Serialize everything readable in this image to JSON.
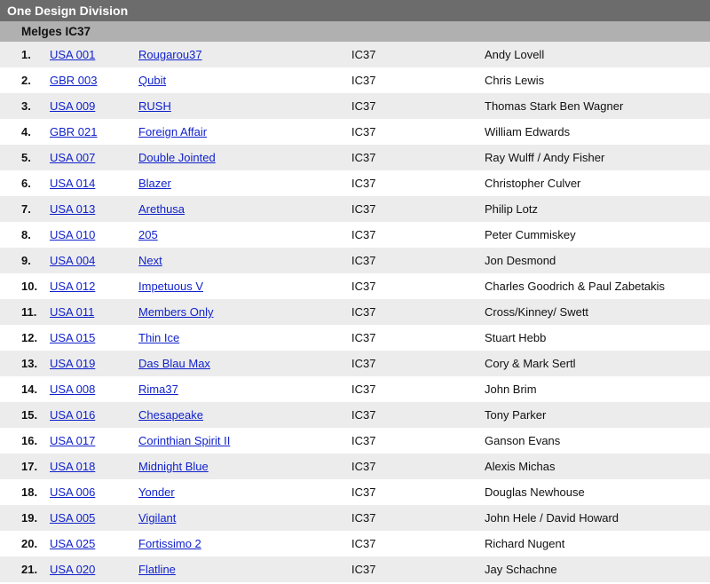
{
  "division_title": "One Design Division",
  "class_title": "Melges IC37",
  "colors": {
    "division_bg": "#6c6c6c",
    "division_fg": "#ffffff",
    "class_bg": "#b0b0b0",
    "class_fg": "#111111",
    "row_odd_bg": "#ececec",
    "row_even_bg": "#ffffff",
    "link_color": "#1122cc",
    "text_color": "#111111"
  },
  "columns": [
    "rank",
    "sail",
    "boat",
    "class",
    "owner"
  ],
  "rows": [
    {
      "rank": "1.",
      "sail": "USA 001",
      "boat": "Rougarou37",
      "class": "IC37",
      "owner": "Andy Lovell"
    },
    {
      "rank": "2.",
      "sail": "GBR 003",
      "boat": "Qubit",
      "class": "IC37",
      "owner": "Chris Lewis"
    },
    {
      "rank": "3.",
      "sail": "USA 009",
      "boat": "RUSH",
      "class": "IC37",
      "owner": "Thomas Stark Ben Wagner"
    },
    {
      "rank": "4.",
      "sail": "GBR 021",
      "boat": "Foreign Affair",
      "class": "IC37",
      "owner": "William Edwards"
    },
    {
      "rank": "5.",
      "sail": "USA 007",
      "boat": "Double Jointed",
      "class": "IC37",
      "owner": "Ray Wulff / Andy Fisher"
    },
    {
      "rank": "6.",
      "sail": "USA 014",
      "boat": "Blazer",
      "class": "IC37",
      "owner": "Christopher Culver"
    },
    {
      "rank": "7.",
      "sail": "USA 013",
      "boat": "Arethusa",
      "class": "IC37",
      "owner": "Philip Lotz"
    },
    {
      "rank": "8.",
      "sail": "USA 010",
      "boat": "205",
      "class": "IC37",
      "owner": "Peter Cummiskey"
    },
    {
      "rank": "9.",
      "sail": "USA 004",
      "boat": "Next",
      "class": "IC37",
      "owner": "Jon Desmond"
    },
    {
      "rank": "10.",
      "sail": "USA 012",
      "boat": "Impetuous V",
      "class": "IC37",
      "owner": "Charles Goodrich & Paul Zabetakis"
    },
    {
      "rank": "11.",
      "sail": "USA 011",
      "boat": "Members Only",
      "class": "IC37",
      "owner": "Cross/Kinney/ Swett"
    },
    {
      "rank": "12.",
      "sail": "USA 015",
      "boat": "Thin Ice",
      "class": "IC37",
      "owner": "Stuart Hebb"
    },
    {
      "rank": "13.",
      "sail": "USA 019",
      "boat": "Das Blau Max",
      "class": "IC37",
      "owner": "Cory & Mark Sertl"
    },
    {
      "rank": "14.",
      "sail": "USA 008",
      "boat": "Rima37",
      "class": "IC37",
      "owner": "John Brim"
    },
    {
      "rank": "15.",
      "sail": "USA 016",
      "boat": "Chesapeake",
      "class": "IC37",
      "owner": "Tony Parker"
    },
    {
      "rank": "16.",
      "sail": "USA 017",
      "boat": "Corinthian Spirit II",
      "class": "IC37",
      "owner": "Ganson Evans"
    },
    {
      "rank": "17.",
      "sail": "USA 018",
      "boat": "Midnight Blue",
      "class": "IC37",
      "owner": "Alexis Michas"
    },
    {
      "rank": "18.",
      "sail": "USA 006",
      "boat": "Yonder",
      "class": "IC37",
      "owner": "Douglas Newhouse"
    },
    {
      "rank": "19.",
      "sail": "USA 005",
      "boat": "Vigilant",
      "class": "IC37",
      "owner": "John Hele / David Howard"
    },
    {
      "rank": "20.",
      "sail": "USA 025",
      "boat": "Fortissimo 2",
      "class": "IC37",
      "owner": "Richard Nugent"
    },
    {
      "rank": "21.",
      "sail": "USA 020",
      "boat": "Flatline",
      "class": "IC37",
      "owner": "Jay Schachne"
    }
  ]
}
